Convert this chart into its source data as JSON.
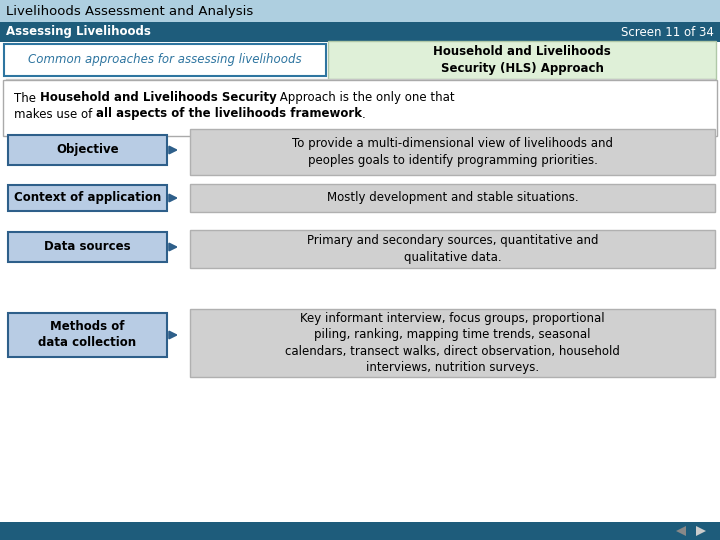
{
  "title": "Livelihoods Assessment and Analysis",
  "subtitle": "Assessing Livelihoods",
  "screen": "Screen 11 of 34",
  "tab_text": "Common approaches for assessing livelihoods",
  "highlight_box_text": "Household and Livelihoods\nSecurity (HLS) Approach",
  "rows": [
    {
      "label": "Objective",
      "description": "To provide a multi-dimensional view of livelihoods and\npeoples goals to identify programming priorities."
    },
    {
      "label": "Context of application",
      "description": "Mostly development and stable situations."
    },
    {
      "label": "Data sources",
      "description": "Primary and secondary sources, quantitative and\nqualitative data."
    },
    {
      "label": "Methods of\ndata collection",
      "description": "Key informant interview, focus groups, proportional\npiling, ranking, mapping time trends, seasonal\ncalendars, transect walks, direct observation, household\ninterviews, nutrition surveys."
    }
  ],
  "colors": {
    "title_bg": "#aecfe0",
    "subtitle_bg": "#1e5c7b",
    "subtitle_text": "#ffffff",
    "tab_border": "#2e75a0",
    "tab_bg": "#ffffff",
    "tab_text": "#2e75a0",
    "highlight_bg": "#dff0d8",
    "highlight_border": "#b0c8a8",
    "highlight_text": "#000000",
    "intro_bg": "#ffffff",
    "intro_border": "#aaaaaa",
    "label_bg": "#b8cce4",
    "label_border": "#2e5f8a",
    "label_text": "#000000",
    "desc_bg": "#d0d0d0",
    "desc_border": "#b0b0b0",
    "desc_text": "#000000",
    "arrow_color": "#2e5f8a",
    "footer_bg": "#1e5c7b",
    "nav_left": "#888888",
    "nav_right": "#cccccc",
    "bg": "#ffffff",
    "sep_line": "#cccccc"
  }
}
